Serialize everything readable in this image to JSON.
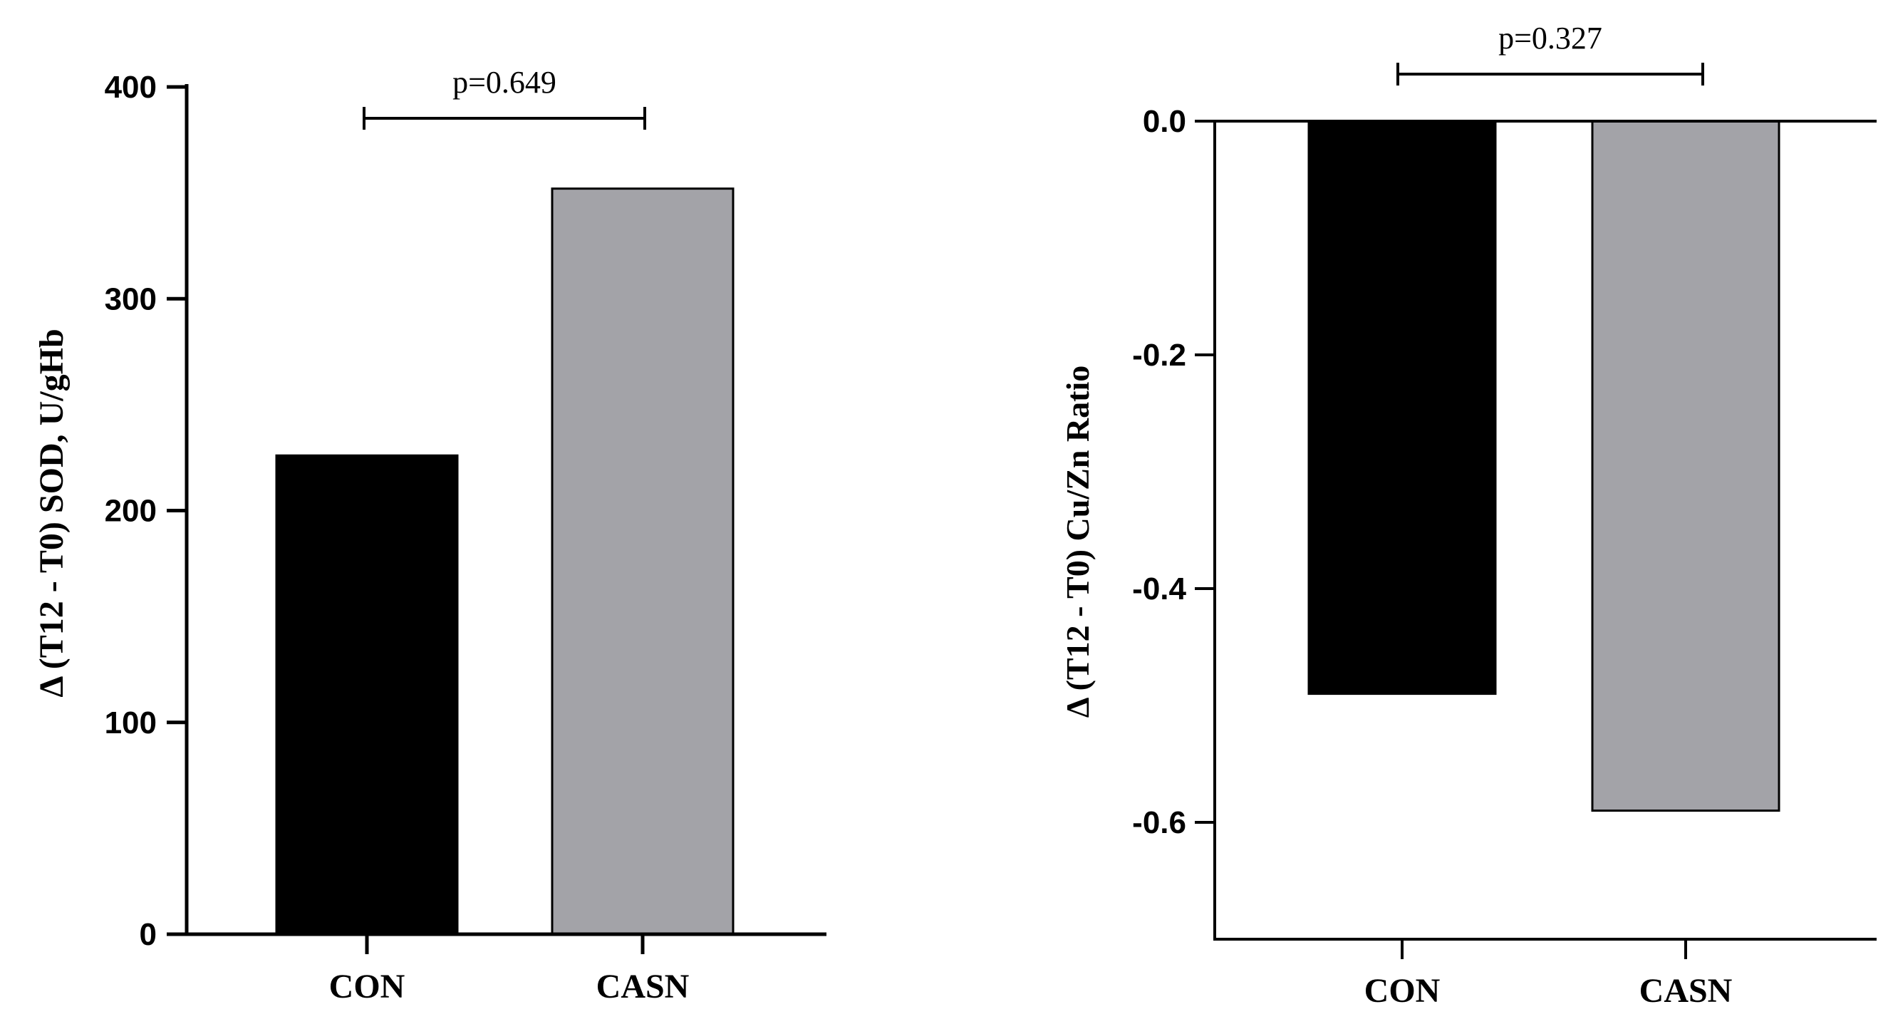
{
  "chart_data": [
    {
      "type": "bar",
      "categories": [
        "CON",
        "CASN"
      ],
      "values": [
        226,
        352
      ],
      "colors": [
        "#000000",
        "#a3a3a8"
      ],
      "ylabel": "Δ (T12 - T0) SOD, U/gHb",
      "xlabel": "",
      "ylim": [
        0,
        400
      ],
      "yticks": [
        "0",
        "100",
        "200",
        "300",
        "400"
      ],
      "yticks_values": [
        0,
        100,
        200,
        300,
        400
      ],
      "annotation": "p=0.649"
    },
    {
      "type": "bar",
      "categories": [
        "CON",
        "CASN"
      ],
      "values": [
        -0.49,
        -0.59
      ],
      "colors": [
        "#000000",
        "#a3a3a8"
      ],
      "ylabel": "Δ (T12 - T0) Cu/Zn Ratio",
      "xlabel": "",
      "ylim": [
        -0.7,
        0
      ],
      "yticks": [
        "0.0",
        "-0.2",
        "-0.4",
        "-0.6"
      ],
      "yticks_values": [
        0,
        -0.2,
        -0.4,
        -0.6
      ],
      "annotation": "p=0.327"
    }
  ]
}
